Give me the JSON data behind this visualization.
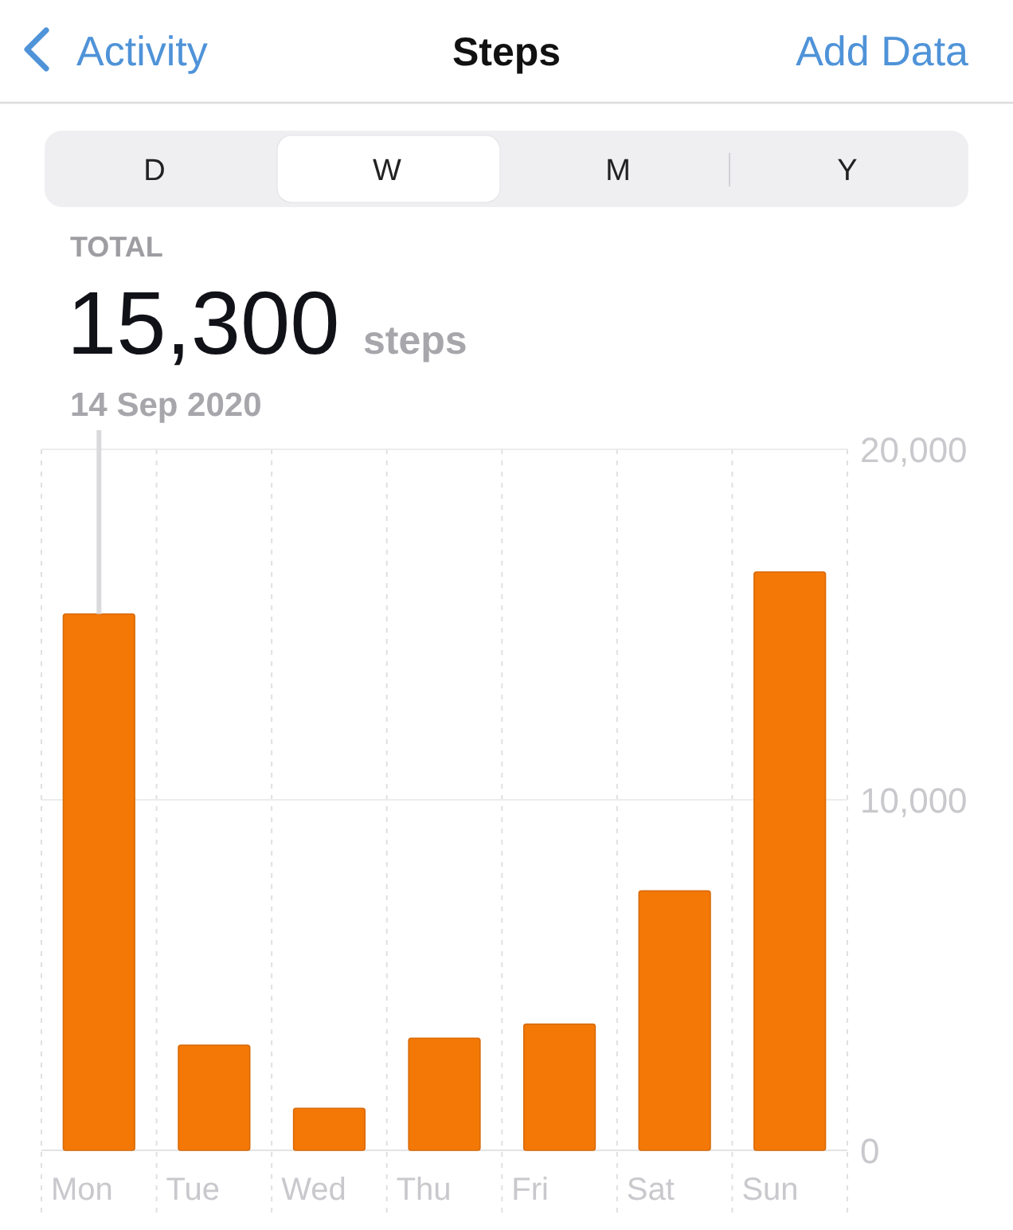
{
  "chart_data": {
    "type": "bar",
    "title": "Steps",
    "categories": [
      "Mon",
      "Tue",
      "Wed",
      "Thu",
      "Fri",
      "Sat",
      "Sun"
    ],
    "values": [
      15300,
      3000,
      1200,
      3200,
      3600,
      7400,
      16500
    ],
    "color": "#f47806",
    "ylim": [
      0,
      20000
    ],
    "yticks": [
      0,
      {
        "value": 10000,
        "label": "10,000"
      },
      {
        "value": 20000,
        "label": "20,000"
      }
    ],
    "grid": true,
    "annotations": [
      "Activity",
      "Add Data",
      "D",
      "W",
      "M",
      "Y",
      "TOTAL",
      {
        "text": "15,300",
        "x": "Mon",
        "y": 15300
      },
      "steps",
      "14 Sep 2020"
    ]
  }
}
